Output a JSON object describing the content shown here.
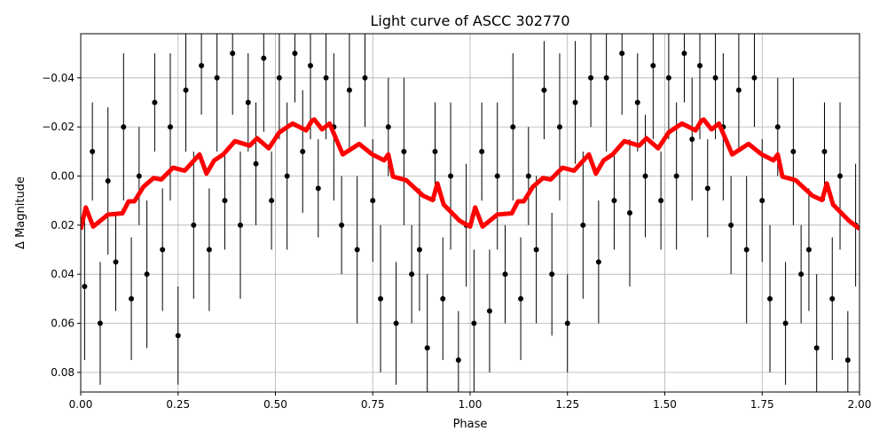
{
  "chart_data": {
    "type": "scatter",
    "title": "Light curve of ASCC 302770",
    "xlabel": "Phase",
    "ylabel": "Δ Magnitude",
    "xlim": [
      0,
      2
    ],
    "ylim": [
      0.088,
      -0.058
    ],
    "y_inverted": true,
    "grid": true,
    "xticks": [
      "0.00",
      "0.25",
      "0.50",
      "0.75",
      "1.00",
      "1.25",
      "1.50",
      "1.75",
      "2.00"
    ],
    "xtick_values": [
      0,
      0.25,
      0.5,
      0.75,
      1,
      1.25,
      1.5,
      1.75,
      2
    ],
    "yticks": [
      "−0.04",
      "−0.02",
      "0.00",
      "0.02",
      "0.04",
      "0.06",
      "0.08"
    ],
    "ytick_values": [
      -0.04,
      -0.02,
      0,
      0.02,
      0.04,
      0.06,
      0.08
    ],
    "series": [
      {
        "kind": "errorbar",
        "color": "#000000",
        "x": [
          0.01,
          0.03,
          0.05,
          0.07,
          0.09,
          0.11,
          0.13,
          0.15,
          0.17,
          0.19,
          0.21,
          0.23,
          0.25,
          0.27,
          0.29,
          0.31,
          0.33,
          0.35,
          0.37,
          0.39,
          0.41,
          0.43,
          0.45,
          0.47,
          0.49,
          0.51,
          0.53,
          0.55,
          0.57,
          0.59,
          0.61,
          0.63,
          0.65,
          0.67,
          0.69,
          0.71,
          0.73,
          0.75,
          0.77,
          0.79,
          0.81,
          0.83,
          0.85,
          0.87,
          0.89,
          0.91,
          0.93,
          0.95,
          0.97,
          0.99,
          1.01,
          1.03,
          1.05,
          1.07,
          1.09,
          1.11,
          1.13,
          1.15,
          1.17,
          1.19,
          1.21,
          1.23,
          1.25,
          1.27,
          1.29,
          1.31,
          1.33,
          1.35,
          1.37,
          1.39,
          1.41,
          1.43,
          1.45,
          1.47,
          1.49,
          1.51,
          1.53,
          1.55,
          1.57,
          1.59,
          1.61,
          1.63,
          1.65,
          1.67,
          1.69,
          1.71,
          1.73,
          1.75,
          1.77,
          1.79,
          1.81,
          1.83,
          1.85,
          1.87,
          1.89,
          1.91,
          1.93,
          1.95,
          1.97,
          1.99
        ],
        "y": [
          0.045,
          -0.01,
          0.06,
          0.002,
          0.035,
          -0.02,
          0.05,
          0.0,
          0.04,
          -0.03,
          0.03,
          -0.02,
          0.065,
          -0.035,
          0.02,
          -0.045,
          0.03,
          -0.04,
          0.01,
          -0.05,
          0.02,
          -0.03,
          -0.005,
          -0.048,
          0.01,
          -0.04,
          0.0,
          -0.05,
          -0.01,
          -0.045,
          0.005,
          -0.04,
          -0.02,
          0.02,
          -0.035,
          0.03,
          -0.04,
          0.01,
          0.05,
          -0.02,
          0.06,
          -0.01,
          0.04,
          0.03,
          0.07,
          -0.01,
          0.05,
          0.0,
          0.075,
          0.02,
          0.06,
          -0.01,
          0.055,
          0.0,
          0.04,
          -0.02,
          0.05,
          0.0,
          0.03,
          -0.035,
          0.04,
          -0.02,
          0.06,
          -0.03,
          0.02,
          -0.04,
          0.035,
          -0.04,
          0.01,
          -0.05,
          0.015,
          -0.03,
          0.0,
          -0.045,
          0.01,
          -0.04,
          0.0,
          -0.05,
          -0.015,
          -0.045,
          0.005,
          -0.04,
          -0.02,
          0.02,
          -0.035,
          0.03,
          -0.04,
          0.01,
          0.05,
          -0.02,
          0.06,
          -0.01,
          0.04,
          0.03,
          0.07,
          -0.01,
          0.05,
          0.0,
          0.075,
          0.02
        ],
        "yerr": [
          0.03,
          0.02,
          0.025,
          0.03,
          0.02,
          0.03,
          0.025,
          0.02,
          0.03,
          0.02,
          0.025,
          0.03,
          0.02,
          0.025,
          0.03,
          0.02,
          0.025,
          0.03,
          0.02,
          0.025,
          0.03,
          0.02,
          0.025,
          0.03,
          0.02,
          0.025,
          0.03,
          0.02,
          0.025,
          0.03,
          0.02,
          0.025,
          0.03,
          0.02,
          0.025,
          0.03,
          0.02,
          0.025,
          0.03,
          0.02,
          0.025,
          0.03,
          0.02,
          0.025,
          0.03,
          0.02,
          0.025,
          0.03,
          0.02,
          0.025,
          0.03,
          0.02,
          0.025,
          0.03,
          0.02,
          0.03,
          0.025,
          0.02,
          0.03,
          0.02,
          0.025,
          0.03,
          0.02,
          0.025,
          0.03,
          0.02,
          0.025,
          0.03,
          0.02,
          0.025,
          0.03,
          0.02,
          0.025,
          0.03,
          0.02,
          0.025,
          0.03,
          0.02,
          0.025,
          0.03,
          0.02,
          0.025,
          0.03,
          0.02,
          0.025,
          0.03,
          0.02,
          0.025,
          0.03,
          0.02,
          0.025,
          0.03,
          0.02,
          0.025,
          0.03,
          0.02,
          0.025,
          0.03,
          0.02,
          0.025
        ]
      },
      {
        "kind": "line",
        "color": "#ff0000",
        "x": [
          0,
          0.013,
          0.032,
          0.07,
          0.107,
          0.123,
          0.138,
          0.161,
          0.187,
          0.207,
          0.237,
          0.267,
          0.305,
          0.323,
          0.343,
          0.366,
          0.396,
          0.434,
          0.453,
          0.483,
          0.51,
          0.544,
          0.579,
          0.594,
          0.6,
          0.62,
          0.639,
          0.673,
          0.715,
          0.749,
          0.779,
          0.79,
          0.802,
          0.836,
          0.879,
          0.904,
          0.916,
          0.932,
          0.973,
          1.0,
          1.013,
          1.032,
          1.07,
          1.107,
          1.123,
          1.138,
          1.161,
          1.187,
          1.207,
          1.237,
          1.267,
          1.305,
          1.323,
          1.343,
          1.366,
          1.396,
          1.434,
          1.453,
          1.483,
          1.51,
          1.544,
          1.579,
          1.594,
          1.6,
          1.62,
          1.639,
          1.673,
          1.715,
          1.749,
          1.779,
          1.79,
          1.802,
          1.836,
          1.879,
          1.904,
          1.916,
          1.932,
          1.973,
          2.0
        ],
        "y": [
          0.0218,
          0.0128,
          0.0206,
          0.0157,
          0.0152,
          0.0103,
          0.0103,
          0.0044,
          0.0008,
          0.0014,
          -0.0034,
          -0.0022,
          -0.0088,
          -0.001,
          -0.0064,
          -0.0088,
          -0.0142,
          -0.0124,
          -0.0154,
          -0.0113,
          -0.0178,
          -0.0214,
          -0.0186,
          -0.0226,
          -0.023,
          -0.019,
          -0.0214,
          -0.0088,
          -0.0131,
          -0.0088,
          -0.0064,
          -0.0088,
          0.0002,
          0.0017,
          0.008,
          0.0098,
          0.003,
          0.0116,
          0.0182,
          0.0206,
          0.0128,
          0.0206,
          0.0157,
          0.0152,
          0.0103,
          0.0103,
          0.0044,
          0.0008,
          0.0014,
          -0.0034,
          -0.0022,
          -0.0088,
          -0.001,
          -0.0064,
          -0.0088,
          -0.0142,
          -0.0124,
          -0.0154,
          -0.0113,
          -0.0178,
          -0.0214,
          -0.0186,
          -0.0226,
          -0.023,
          -0.019,
          -0.0214,
          -0.0088,
          -0.0131,
          -0.0088,
          -0.0064,
          -0.0088,
          0.0002,
          0.0017,
          0.008,
          0.0098,
          0.003,
          0.0116,
          0.0182,
          0.0215
        ]
      }
    ]
  }
}
